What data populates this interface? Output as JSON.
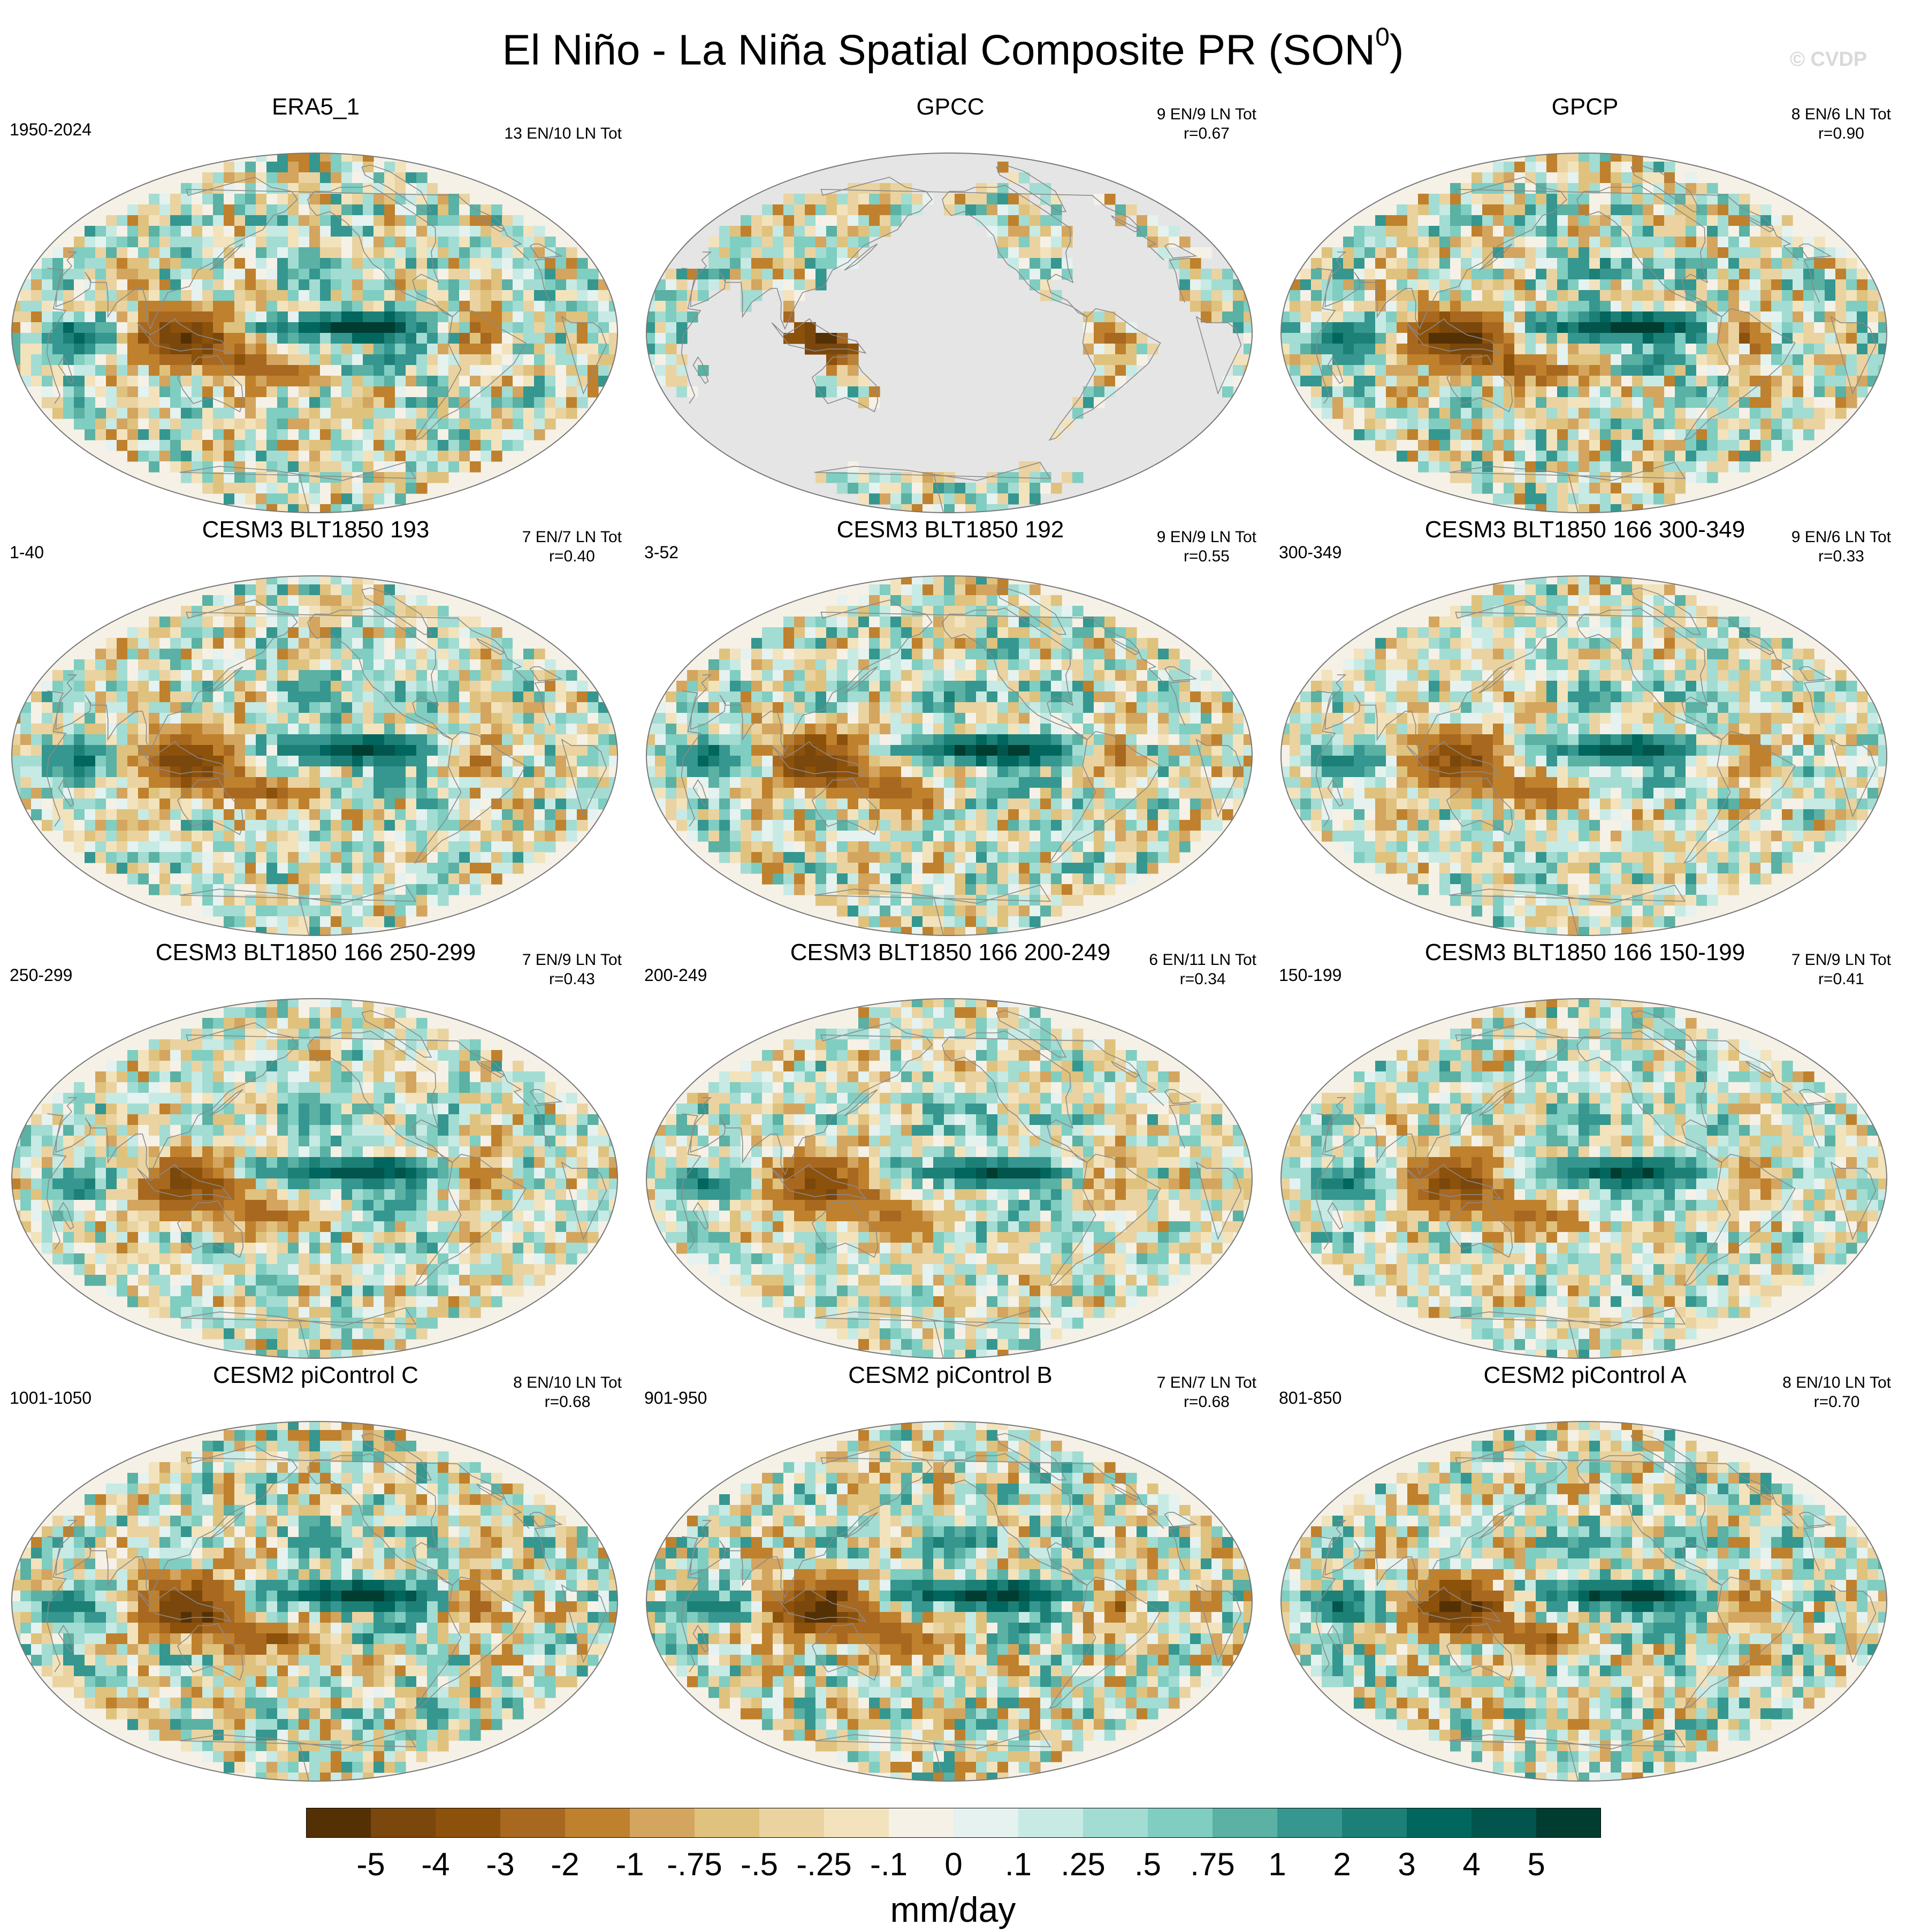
{
  "title": "El Niño - La Niña Spatial Composite PR (SON",
  "title_sup": "0",
  "title_close": ")",
  "watermark": "© CVDP",
  "colors": {
    "brown": [
      "#543005",
      "#7a470c",
      "#8c510a",
      "#a86820",
      "#bf812d",
      "#d3a55f",
      "#dfc27d",
      "#ead3a0",
      "#f2e3bc",
      "#f5f1e7",
      "#e5f2ef",
      "#c7eae4",
      "#a3dcd2",
      "#80cdc1",
      "#5ab1a4",
      "#35978f",
      "#1d8077",
      "#01665e",
      "#02554c",
      "#003c30"
    ],
    "land_grey": "#e5e5e5",
    "coast": "#8a8a8a"
  },
  "panels": [
    {
      "title": "ERA5_1",
      "left": "1950-2024",
      "right1": "13 EN/10 LN Tot",
      "right2": "",
      "seed": 11,
      "amp": 1.0
    },
    {
      "title": "GPCC",
      "left": "",
      "right1": "9 EN/9 LN Tot",
      "right2": "r=0.67",
      "seed": 23,
      "amp": 1.0,
      "landonly": true
    },
    {
      "title": "GPCP",
      "left": "",
      "right1": "8 EN/6 LN Tot",
      "right2": "r=0.90",
      "seed": 37,
      "amp": 1.1
    },
    {
      "title": "CESM3 BLT1850 193",
      "left": "1-40",
      "right1": "7 EN/7 LN Tot",
      "right2": "r=0.40",
      "seed": 41,
      "amp": 0.9
    },
    {
      "title": "CESM3 BLT1850 192",
      "left": "3-52",
      "right1": "9 EN/9 LN Tot",
      "right2": "r=0.55",
      "seed": 53,
      "amp": 0.95
    },
    {
      "title": "CESM3 BLT1850 166 300-349",
      "left": "300-349",
      "right1": "9 EN/6 LN Tot",
      "right2": "r=0.33",
      "seed": 67,
      "amp": 0.8
    },
    {
      "title": "CESM3 BLT1850 166 250-299",
      "left": "250-299",
      "right1": "7 EN/9 LN Tot",
      "right2": "r=0.43",
      "seed": 71,
      "amp": 0.85
    },
    {
      "title": "CESM3 BLT1850 166 200-249",
      "left": "200-249",
      "right1": "6 EN/11 LN Tot",
      "right2": "r=0.34",
      "seed": 83,
      "amp": 0.8
    },
    {
      "title": "CESM3 BLT1850 166 150-199",
      "left": "150-199",
      "right1": "7 EN/9 LN Tot",
      "right2": "r=0.41",
      "seed": 97,
      "amp": 0.85
    },
    {
      "title": "CESM2 piControl C",
      "left": "1001-1050",
      "right1": "8 EN/10 LN Tot",
      "right2": "r=0.68",
      "seed": 101,
      "amp": 1.1
    },
    {
      "title": "CESM2 piControl B",
      "left": "901-950",
      "right1": "7 EN/7 LN Tot",
      "right2": "r=0.68",
      "seed": 113,
      "amp": 1.1
    },
    {
      "title": "CESM2 piControl A",
      "left": "801-850",
      "right1": "8 EN/10 LN Tot",
      "right2": "r=0.70",
      "seed": 127,
      "amp": 1.05
    }
  ],
  "colorbar": {
    "labels": [
      "-5",
      "-4",
      "-3",
      "-2",
      "-1",
      "-.75",
      "-.5",
      "-.25",
      "-.1",
      "0",
      ".1",
      ".25",
      ".5",
      ".75",
      "1",
      "2",
      "3",
      "4",
      "5"
    ],
    "unit": "mm/day"
  }
}
